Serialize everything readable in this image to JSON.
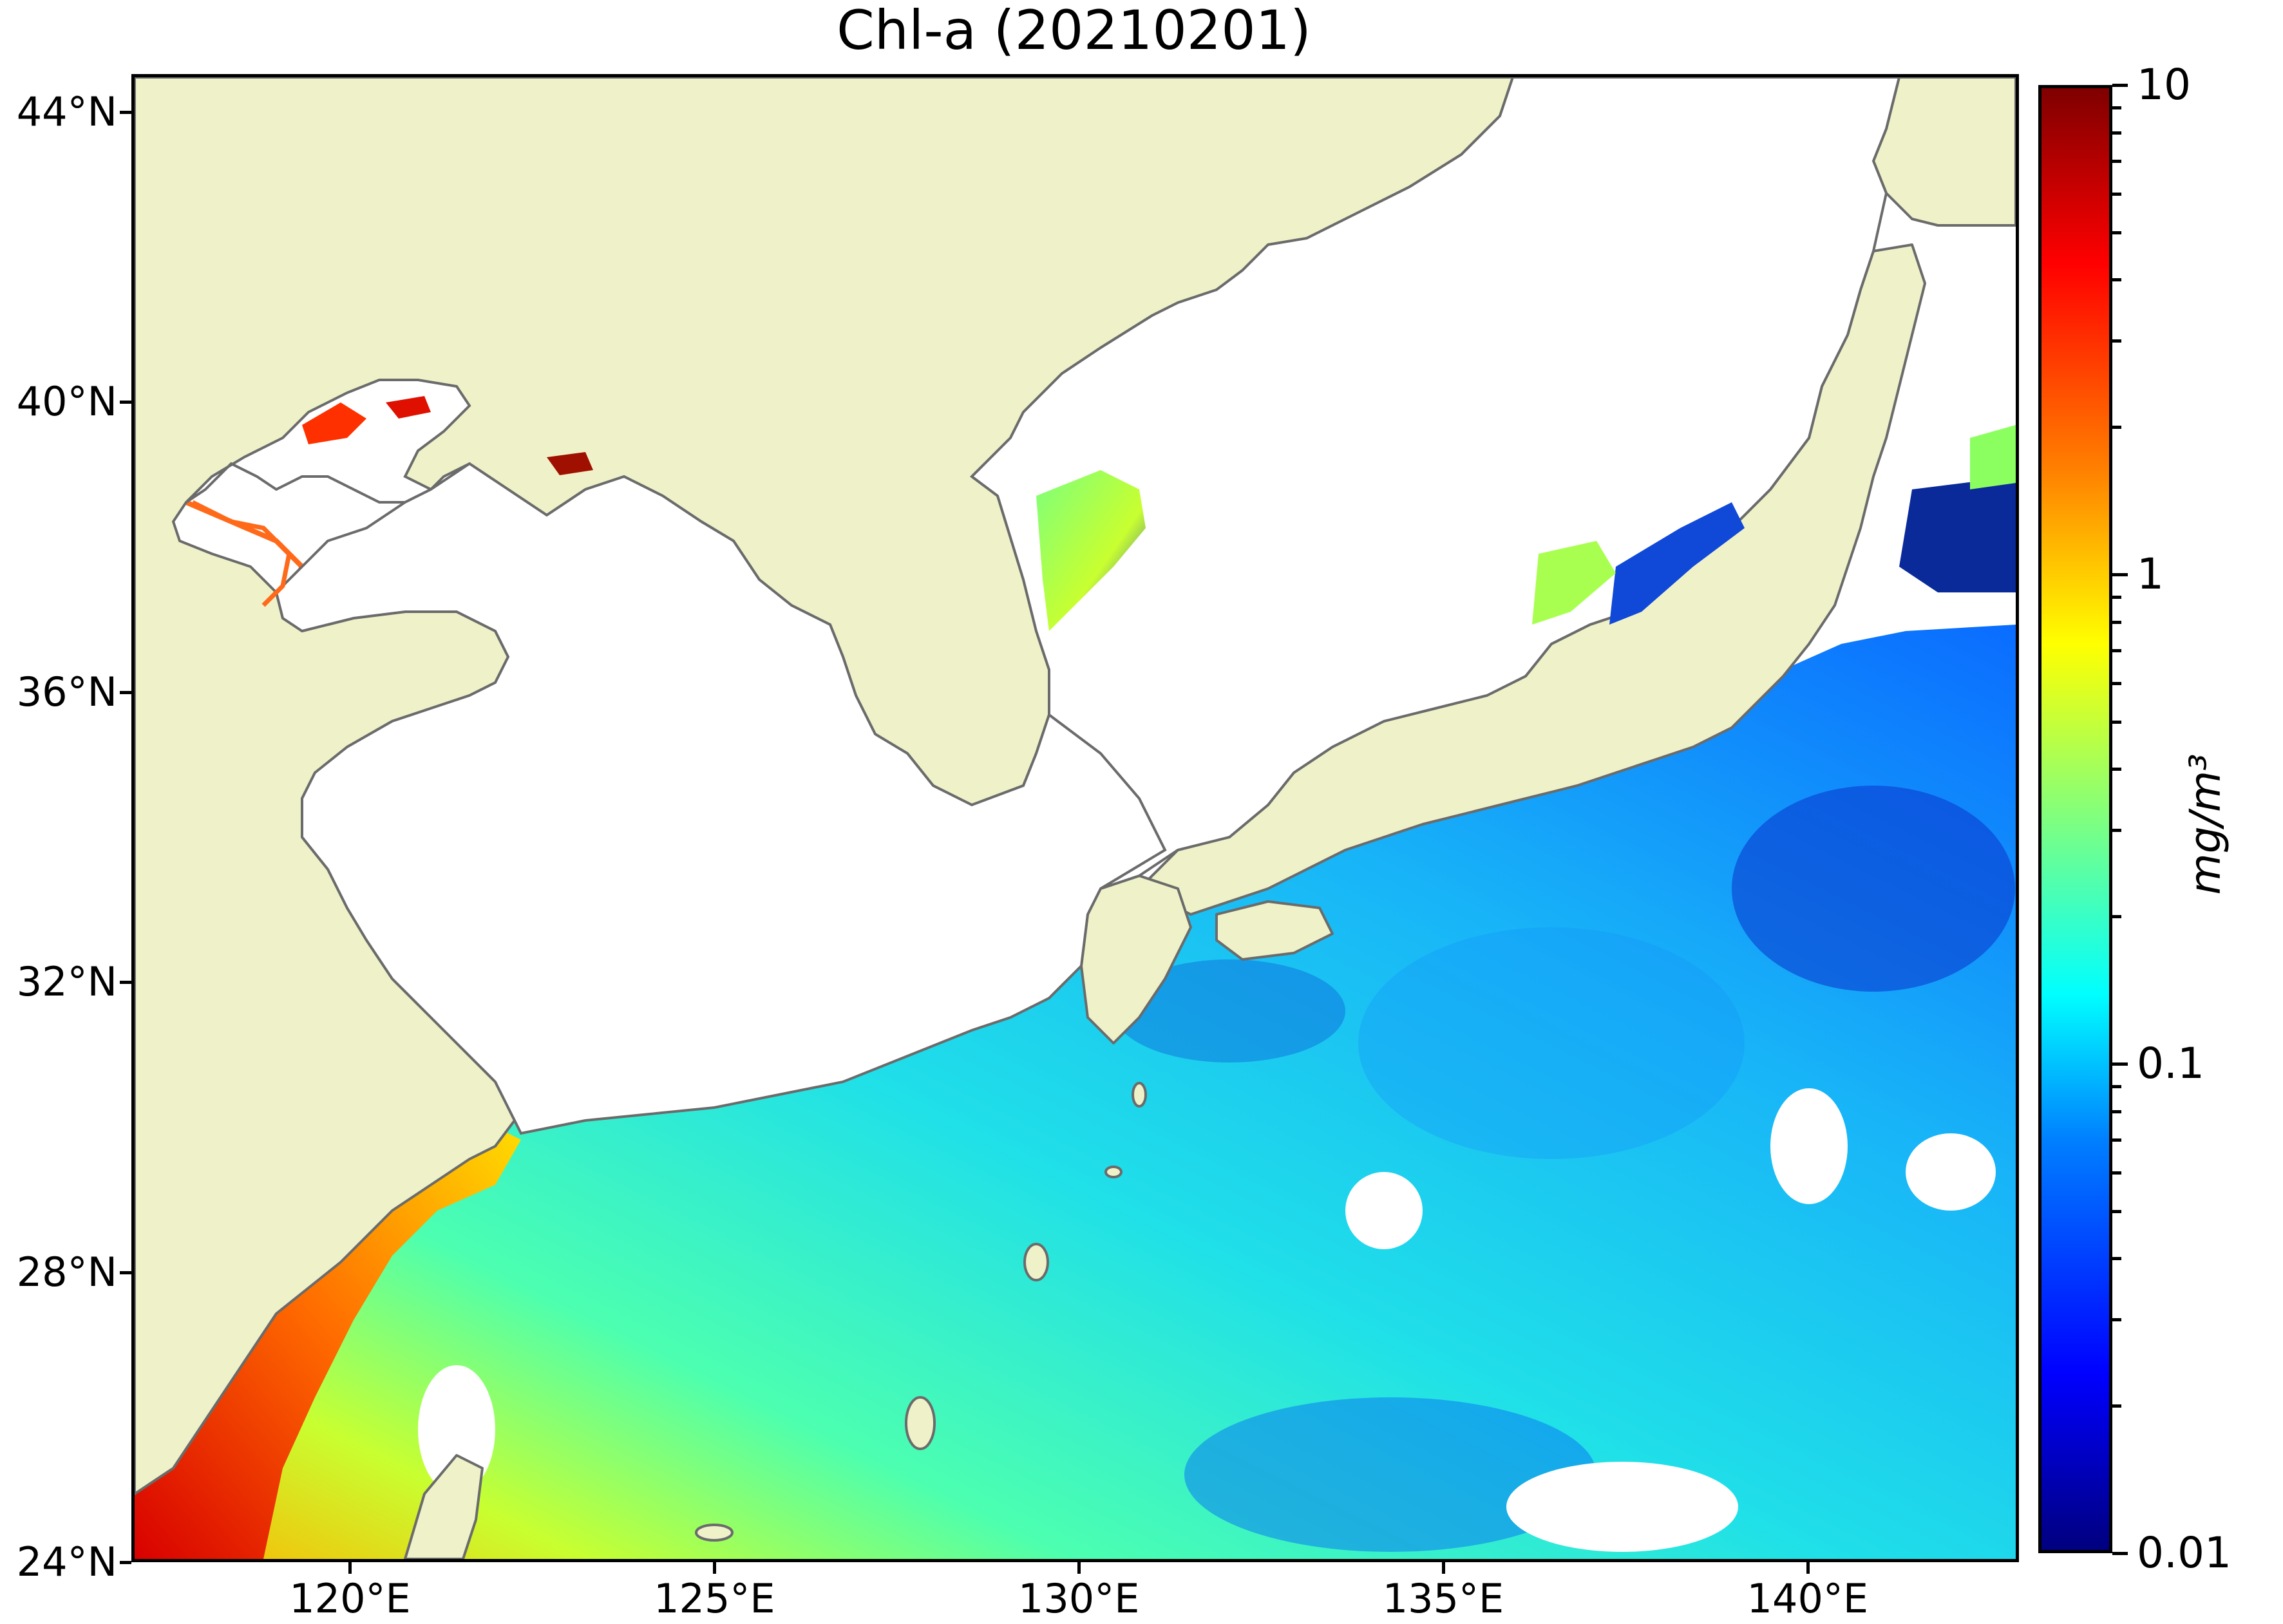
{
  "title": "Chl-a (20210201)",
  "map": {
    "region": "East China Sea / Sea of Japan",
    "land_color": "#eff2c9",
    "coastline_color": "#6b6b6b",
    "no_data_color": "#ffffff",
    "lat_range": [
      24,
      44.5
    ],
    "lon_range": [
      117,
      143
    ]
  },
  "lat_axis": {
    "ticks": [
      {
        "value": 44,
        "label": "44°N"
      },
      {
        "value": 40,
        "label": "40°N"
      },
      {
        "value": 36,
        "label": "36°N"
      },
      {
        "value": 32,
        "label": "32°N"
      },
      {
        "value": 28,
        "label": "28°N"
      },
      {
        "value": 24,
        "label": "24°N"
      }
    ]
  },
  "lon_axis": {
    "ticks": [
      {
        "value": 120,
        "label": "120°E"
      },
      {
        "value": 125,
        "label": "125°E"
      },
      {
        "value": 130,
        "label": "130°E"
      },
      {
        "value": 135,
        "label": "135°E"
      },
      {
        "value": 140,
        "label": "140°E"
      }
    ]
  },
  "colorbar": {
    "scale": "log",
    "min": 0.01,
    "max": 10,
    "colormap": "jet",
    "unit_label": "mg/m³",
    "ticks": [
      {
        "value": 10,
        "label": "10"
      },
      {
        "value": 1,
        "label": "1"
      },
      {
        "value": 0.1,
        "label": "0.1"
      },
      {
        "value": 0.01,
        "label": "0.01"
      }
    ]
  }
}
